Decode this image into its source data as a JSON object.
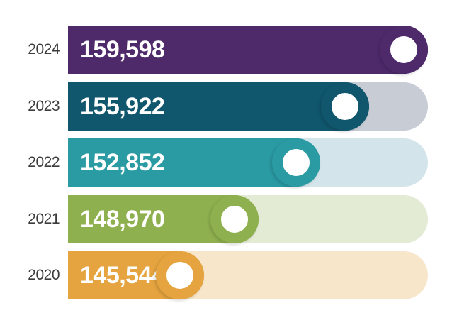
{
  "chart_data": {
    "type": "bar",
    "orientation": "horizontal",
    "categories": [
      "2024",
      "2023",
      "2022",
      "2021",
      "2020"
    ],
    "values": [
      159598,
      155922,
      152852,
      148970,
      145544
    ],
    "value_labels": [
      "159,598",
      "155,922",
      "152,852",
      "148,970",
      "145,544"
    ],
    "xlim": [
      137000,
      159598
    ],
    "colors": {
      "bar": [
        "#4e2a6b",
        "#10566d",
        "#2a9aa3",
        "#8fb04f",
        "#e5a43f"
      ],
      "track": [
        "#4e2a6b",
        "#c7ccd5",
        "#d3e5ea",
        "#e3ebd5",
        "#f8e6cb"
      ],
      "knob_fill": "#ffffff"
    },
    "grid": false,
    "legend": "none"
  }
}
